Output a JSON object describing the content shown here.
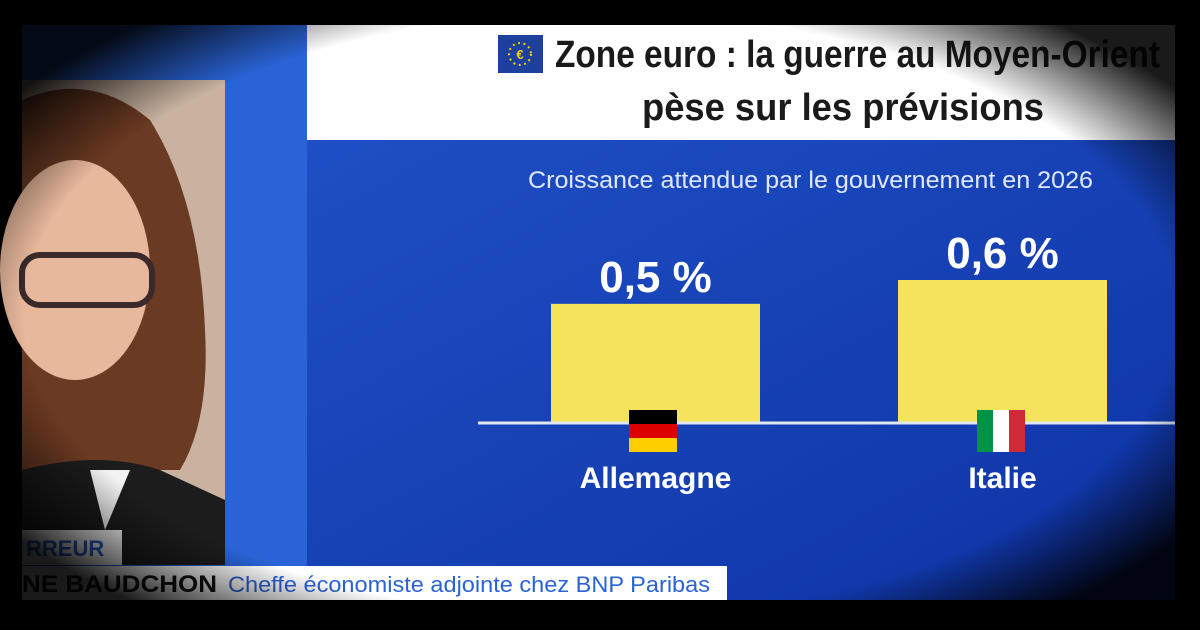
{
  "chart_data": {
    "type": "bar",
    "title": [
      "Zone euro : la guerre au Moyen-Orient",
      "pèse sur les prévisions"
    ],
    "subtitle": "Croissance attendue par le gouvernement en 2026",
    "categories": [
      "Allemagne",
      "Italie"
    ],
    "values": [
      0.5,
      0.6
    ],
    "value_labels": [
      "0,5 %",
      "0,6 %"
    ],
    "color": "#f5e35c"
  },
  "lower_third": {
    "role": "RREUR",
    "name": "NE BAUDCHON",
    "description": "Cheffe économiste adjointe chez BNP Paribas"
  }
}
